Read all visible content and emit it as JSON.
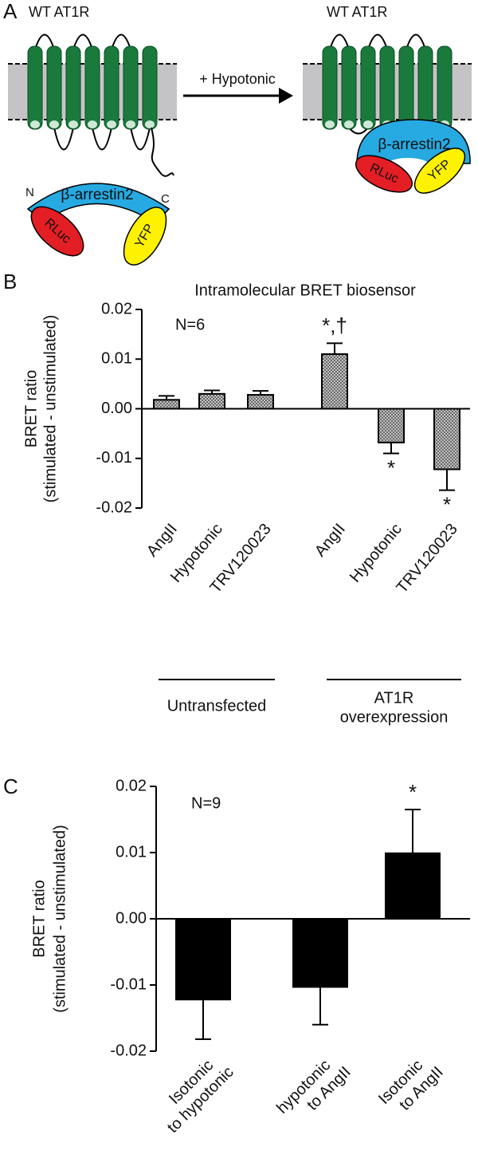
{
  "panel_a": {
    "label": "A",
    "left_title": "WT AT1R",
    "right_title": "WT AT1R",
    "arrow_label": "+ Hypotonic",
    "n_term": "N",
    "c_term": "C",
    "left_sensor": {
      "arrestin": "β-arrestin2",
      "rluc": "RLuc",
      "yfp": "YFP"
    },
    "right_sensor": {
      "arrestin": "β-arrestin2",
      "rluc": "RLuc",
      "yfp": "YFP"
    }
  },
  "chart_data": [
    {
      "type": "bar",
      "panel_label": "B",
      "title": "Intramolecular BRET biosensor",
      "annotation": "N=6",
      "y_label": [
        "BRET ratio",
        "(stimulated - unstimulated)"
      ],
      "categories": [
        [
          "AngII"
        ],
        [
          "Hypotonic"
        ],
        [
          "TRV120023"
        ],
        [
          "AngII"
        ],
        [
          "Hypotonic"
        ],
        [
          "TRV120023"
        ]
      ],
      "groups": [
        [
          "Untransfected"
        ],
        [
          "AT1R",
          "overexpression"
        ]
      ],
      "values": [
        0.0018,
        0.003,
        0.0028,
        0.011,
        -0.0068,
        -0.0122
      ],
      "errors": [
        0.0008,
        0.0007,
        0.0008,
        0.0022,
        0.0022,
        0.0042
      ],
      "significance": [
        null,
        null,
        null,
        "*,†",
        "*",
        "*"
      ],
      "fill": "crosshatch",
      "ylim": [
        -0.02,
        0.02
      ],
      "yticks": [
        -0.02,
        -0.01,
        {
          "value": 0,
          "label": "0.00"
        },
        0.01,
        0.02
      ]
    },
    {
      "type": "bar",
      "panel_label": "C",
      "annotation": "N=9",
      "y_label": [
        "BRET ratio",
        "(stimulated - unstimulated)"
      ],
      "categories": [
        [
          "Isotonic",
          "to hypotonic"
        ],
        [
          "hypotonic",
          "to AngII"
        ],
        [
          "Isotonic",
          "to AngII"
        ]
      ],
      "values": [
        -0.0122,
        -0.0103,
        0.0099
      ],
      "errors": [
        0.006,
        0.0057,
        0.0066
      ],
      "significance": [
        null,
        null,
        "*"
      ],
      "color": "#000000",
      "ylim": [
        -0.02,
        0.02
      ],
      "yticks": [
        -0.02,
        -0.01,
        {
          "value": 0,
          "label": "0.00"
        },
        0.01,
        0.02
      ]
    }
  ]
}
